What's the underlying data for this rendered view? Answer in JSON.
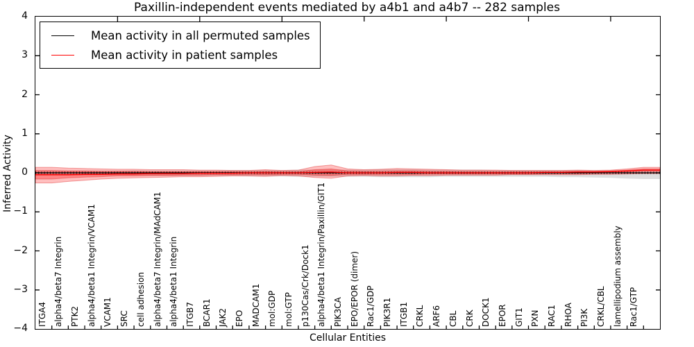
{
  "chart_data": {
    "type": "line",
    "title": "Paxillin-independent events mediated by a4b1 and a4b7 -- 282 samples",
    "xlabel": "Cellular Entities",
    "ylabel": "Inferred Activity",
    "ylim": [
      -4,
      4
    ],
    "grid": false,
    "legend_position": "upper left",
    "top_tick_every": 5,
    "yticks": [
      {
        "label": "4",
        "value": 4
      },
      {
        "label": "3",
        "value": 3
      },
      {
        "label": "2",
        "value": 2
      },
      {
        "label": "1",
        "value": 1
      },
      {
        "label": "0",
        "value": 0
      },
      {
        "label": "−1",
        "value": -1
      },
      {
        "label": "−2",
        "value": -2
      },
      {
        "label": "−3",
        "value": -3
      },
      {
        "label": "−4",
        "value": -4
      }
    ],
    "categories": [
      "ITGA4",
      "alpha4/beta7 Integrin",
      "PTK2",
      "alpha4/beta1 Integrin/VCAM1",
      "VCAM1",
      "SRC",
      "cell adhesion",
      "alpha4/beta7 Integrin/MAdCAM1",
      "alpha4/beta1 Integrin",
      "ITGB7",
      "BCAR1",
      "JAK2",
      "EPO",
      "MADCAM1",
      "mol:GDP",
      "mol:GTP",
      "p130Cas/Crk/Dock1",
      "alpha4/beta1 Integrin/Paxillin/GIT1",
      "PIK3CA",
      "EPO/EPOR (dimer)",
      "Rac1/GDP",
      "PIK3R1",
      "ITGB1",
      "CRKL",
      "ARF6",
      "CBL",
      "CRK",
      "DOCK1",
      "EPOR",
      "GIT1",
      "PXN",
      "RAC1",
      "RHOA",
      "PI3K",
      "CRKL/CBL",
      "lamellipodium assembly",
      "Rac1/GTP"
    ],
    "series": [
      {
        "name": "Mean activity in all permuted samples",
        "color": "#000000",
        "band_color": "rgba(0,0,0,0.13)",
        "values": [
          0,
          0,
          0,
          0,
          0,
          0,
          0,
          0,
          0,
          0,
          0,
          0,
          0,
          0,
          0,
          0,
          0,
          0,
          0,
          0,
          0,
          0,
          0,
          0,
          0,
          0,
          0,
          0,
          0,
          0,
          0,
          0,
          0,
          0,
          0,
          0,
          0
        ],
        "band_upper": [
          0.05,
          0.05,
          0.05,
          0.05,
          0.05,
          0.06,
          0.06,
          0.06,
          0.06,
          0.06,
          0.06,
          0.07,
          0.07,
          0.07,
          0.07,
          0.08,
          0.08,
          0.08,
          0.08,
          0.08,
          0.09,
          0.09,
          0.09,
          0.08,
          0.08,
          0.08,
          0.08,
          0.07,
          0.07,
          0.07,
          0.07,
          0.07,
          0.07,
          0.06,
          0.06,
          0.06,
          0.09
        ],
        "band_lower": [
          -0.07,
          -0.07,
          -0.07,
          -0.07,
          -0.07,
          -0.07,
          -0.08,
          -0.08,
          -0.08,
          -0.08,
          -0.08,
          -0.08,
          -0.09,
          -0.09,
          -0.09,
          -0.1,
          -0.1,
          -0.1,
          -0.1,
          -0.1,
          -0.11,
          -0.11,
          -0.11,
          -0.11,
          -0.1,
          -0.1,
          -0.1,
          -0.1,
          -0.1,
          -0.1,
          -0.1,
          -0.11,
          -0.11,
          -0.12,
          -0.13,
          -0.15,
          -0.16
        ]
      },
      {
        "name": "Mean activity in patient samples",
        "color": "#ff0000",
        "band_color": "rgba(255,0,0,0.25)",
        "inner_band_color": "rgba(255,0,0,0.30)",
        "values": [
          -0.05,
          -0.05,
          -0.04,
          -0.04,
          -0.03,
          -0.03,
          -0.02,
          -0.02,
          -0.02,
          -0.01,
          -0.01,
          -0.01,
          0,
          0,
          0,
          0,
          0.01,
          0.02,
          0,
          0,
          0,
          0.01,
          0.01,
          0,
          0,
          0,
          0,
          0,
          0,
          0,
          0.01,
          0.01,
          0.02,
          0.02,
          0.03,
          0.05,
          0.07
        ],
        "band_upper": [
          0.14,
          0.12,
          0.11,
          0.1,
          0.09,
          0.09,
          0.08,
          0.08,
          0.08,
          0.07,
          0.07,
          0.06,
          0.06,
          0.08,
          0.06,
          0.07,
          0.16,
          0.2,
          0.1,
          0.08,
          0.09,
          0.11,
          0.1,
          0.09,
          0.08,
          0.07,
          0.07,
          0.07,
          0.06,
          0.06,
          0.06,
          0.06,
          0.07,
          0.06,
          0.07,
          0.1,
          0.14
        ],
        "band_lower": [
          -0.26,
          -0.22,
          -0.19,
          -0.16,
          -0.14,
          -0.13,
          -0.12,
          -0.11,
          -0.1,
          -0.1,
          -0.09,
          -0.08,
          -0.08,
          -0.09,
          -0.07,
          -0.08,
          -0.12,
          -0.14,
          -0.08,
          -0.07,
          -0.08,
          -0.08,
          -0.07,
          -0.07,
          -0.06,
          -0.06,
          -0.06,
          -0.06,
          -0.05,
          -0.05,
          -0.05,
          -0.05,
          -0.05,
          -0.04,
          -0.04,
          -0.03,
          -0.02
        ],
        "inner_upper": [
          0.06,
          0.05,
          0.05,
          0.04,
          0.04,
          0.04,
          0.03,
          0.03,
          0.03,
          0.03,
          0.03,
          0.03,
          0.03,
          0.04,
          0.03,
          0.03,
          0.08,
          0.1,
          0.05,
          0.04,
          0.04,
          0.05,
          0.05,
          0.04,
          0.04,
          0.03,
          0.03,
          0.03,
          0.03,
          0.03,
          0.03,
          0.03,
          0.04,
          0.04,
          0.05,
          0.07,
          0.1
        ],
        "inner_lower": [
          -0.16,
          -0.13,
          -0.11,
          -0.1,
          -0.08,
          -0.08,
          -0.07,
          -0.07,
          -0.06,
          -0.06,
          -0.05,
          -0.05,
          -0.04,
          -0.05,
          -0.04,
          -0.04,
          -0.06,
          -0.07,
          -0.04,
          -0.04,
          -0.04,
          -0.04,
          -0.04,
          -0.03,
          -0.03,
          -0.03,
          -0.03,
          -0.03,
          -0.03,
          -0.03,
          -0.02,
          -0.02,
          -0.02,
          -0.01,
          0.0,
          0.02,
          0.04
        ]
      }
    ]
  }
}
